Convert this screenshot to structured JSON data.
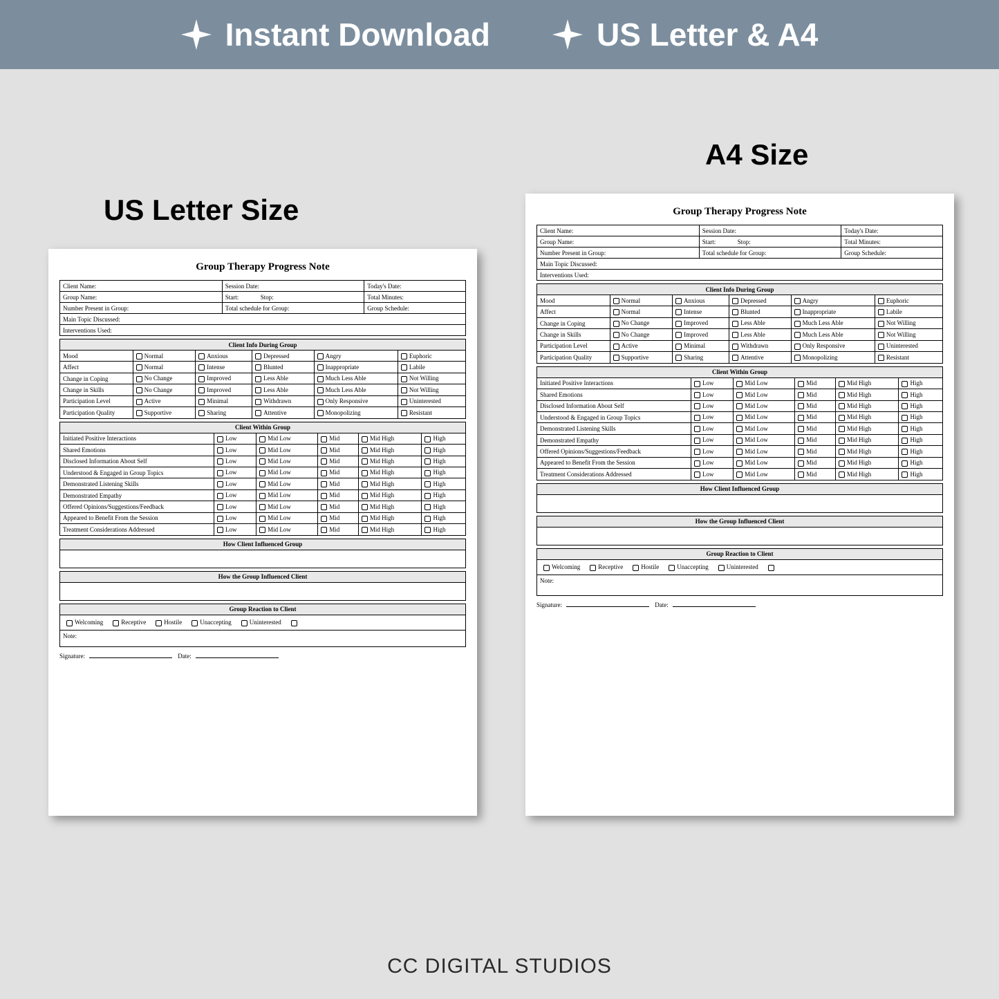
{
  "banner": {
    "item1": "Instant Download",
    "item2": "US Letter & A4",
    "bg_color": "#7c8e9e",
    "text_color": "#ffffff"
  },
  "labels": {
    "us": "US Letter Size",
    "a4": "A4 Size"
  },
  "form": {
    "title": "Group Therapy Progress Note",
    "header_fields": {
      "client_name": "Client Name:",
      "session_date": "Session Date:",
      "todays_date": "Today's Date:",
      "group_name": "Group Name:",
      "start": "Start:",
      "stop": "Stop:",
      "total_minutes": "Total Minutes:",
      "number_present": "Number Present in Group:",
      "total_schedule": "Total schedule for Group:",
      "group_schedule": "Group Schedule:",
      "main_topic": "Main Topic Discussed:",
      "interventions": "Interventions Used:"
    },
    "section1": {
      "title": "Client Info During Group",
      "rows": [
        {
          "label": "Mood",
          "opts": [
            "Normal",
            "Anxious",
            "Depressed",
            "Angry",
            "Euphoric"
          ]
        },
        {
          "label": "Affect",
          "opts": [
            "Normal",
            "Intense",
            "Blunted",
            "Inappropriate",
            "Labile"
          ]
        },
        {
          "label": "Change in Coping",
          "opts": [
            "No Change",
            "Improved",
            "Less Able",
            "Much Less Able",
            "Not Willing"
          ]
        },
        {
          "label": "Change in Skills",
          "opts": [
            "No Change",
            "Improved",
            "Less Able",
            "Much Less Able",
            "Not Willing"
          ]
        },
        {
          "label": "Participation Level",
          "opts": [
            "Active",
            "Minimal",
            "Withdrawn",
            "Only Responsive",
            "Uninterested"
          ]
        },
        {
          "label": "Participation Quality",
          "opts": [
            "Supportive",
            "Sharing",
            "Attentive",
            "Monopolizing",
            "Resistant"
          ]
        }
      ]
    },
    "section2": {
      "title": "Client Within Group",
      "scale": [
        "Low",
        "Mid Low",
        "Mid",
        "Mid High",
        "High"
      ],
      "rows": [
        "Initiated Positive Interactions",
        "Shared Emotions",
        "Disclosed Information About Self",
        "Understood & Engaged in Group Topics",
        "Demonstrated Listening Skills",
        "Demonstrated Empathy",
        "Offered Opinions/Suggestions/Feedback",
        "Appeared to Benefit From the Session",
        "Treatment Considerations Addressed"
      ]
    },
    "section3": {
      "title": "How Client Influenced Group"
    },
    "section4": {
      "title": "How the Group Influenced Client"
    },
    "section5": {
      "title": "Group Reaction to Client",
      "opts": [
        "Welcoming",
        "Receptive",
        "Hostile",
        "Unaccepting",
        "Uninterested"
      ]
    },
    "note_label": "Note:",
    "signature": "Signature:",
    "date": "Date:"
  },
  "footer": "CC DIGITAL STUDIOS",
  "colors": {
    "page_bg": "#e1e1e1",
    "paper_bg": "#ffffff",
    "border": "#000000",
    "section_header_bg": "#e8e8e8"
  }
}
